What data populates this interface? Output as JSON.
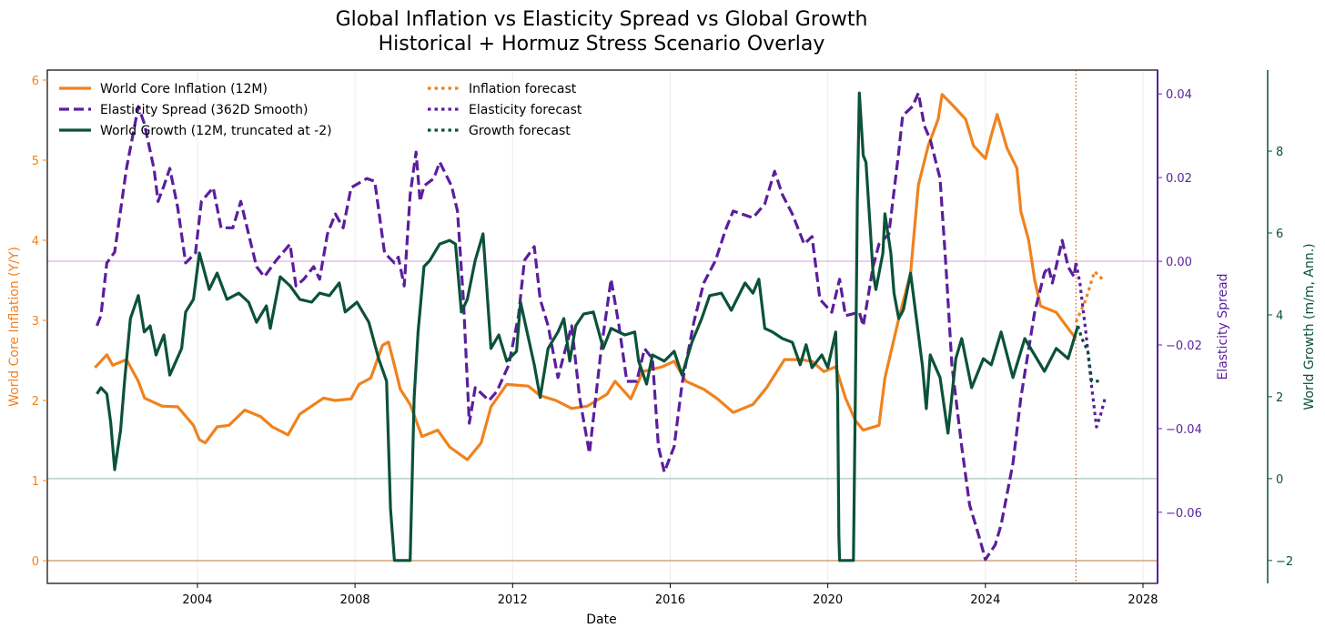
{
  "chart_data": {
    "type": "line",
    "title": [
      "Global Inflation vs Elasticity Spread vs Global Growth",
      "Historical + Hormuz Stress Scenario Overlay"
    ],
    "xlabel": "Date",
    "xlim": [
      2000.19,
      2028.37
    ],
    "x_ticks": [
      2004,
      2008,
      2012,
      2016,
      2020,
      2024,
      2028
    ],
    "x_tick_labels": [
      "2004",
      "2008",
      "2012",
      "2016",
      "2020",
      "2024",
      "2028"
    ],
    "x_grid": true,
    "forecast_start_marker": 2026.3,
    "legend_position": "top-left",
    "axes": {
      "inflation": {
        "label": "World Core Inflation (Y/Y)",
        "ylim": [
          -0.284,
          6.125
        ],
        "ticks": [
          0,
          1,
          2,
          3,
          4,
          5,
          6
        ],
        "tick_labels": [
          "0",
          "1",
          "2",
          "3",
          "4",
          "5",
          "6"
        ],
        "color": "#f0821e",
        "reference_line": 0,
        "reference_color": "#c4955e"
      },
      "elasticity": {
        "label": "Elasticity Spread",
        "ylim": [
          -0.077,
          0.0457
        ],
        "ticks": [
          -0.06,
          -0.04,
          -0.02,
          0,
          0.02,
          0.04
        ],
        "tick_labels": [
          "−0.06",
          "−0.04",
          "−0.02",
          "0.00",
          "0.02",
          "0.04"
        ],
        "color": "#5a1f9c",
        "reference_line": 0,
        "reference_color": "#e0a6ea"
      },
      "growth": {
        "label": "World Growth (m/m, Ann.)",
        "ylim": [
          -2.56,
          9.98
        ],
        "ticks": [
          -2,
          0,
          2,
          4,
          6,
          8
        ],
        "tick_labels": [
          "−2",
          "0",
          "2",
          "4",
          "6",
          "8"
        ],
        "color": "#0b5239",
        "reference_line": 0,
        "reference_color": "#a9c6c3"
      }
    },
    "series": [
      {
        "name": "World Core Inflation (12M)",
        "axis": "inflation",
        "style": "solid",
        "color": "#f0821e",
        "x": [
          2001.4,
          2001.7,
          2001.85,
          2002.2,
          2002.5,
          2002.66,
          2003.1,
          2003.5,
          2003.9,
          2004.05,
          2004.2,
          2004.5,
          2004.8,
          2005.2,
          2005.6,
          2005.9,
          2006.3,
          2006.6,
          2006.9,
          2007.2,
          2007.5,
          2007.9,
          2008.1,
          2008.4,
          2008.7,
          2008.85,
          2009.0,
          2009.15,
          2009.4,
          2009.7,
          2010.1,
          2010.4,
          2010.85,
          2011.2,
          2011.45,
          2011.85,
          2012.4,
          2012.7,
          2013.1,
          2013.5,
          2013.9,
          2014.4,
          2014.6,
          2015.0,
          2015.3,
          2015.8,
          2016.1,
          2016.4,
          2016.85,
          2017.2,
          2017.6,
          2018.1,
          2018.45,
          2018.9,
          2019.3,
          2019.6,
          2019.9,
          2020.2,
          2020.45,
          2020.7,
          2020.9,
          2021.3,
          2021.45,
          2021.8,
          2022.1,
          2022.3,
          2022.55,
          2022.8,
          2022.9,
          2023.2,
          2023.5,
          2023.7,
          2024.0,
          2024.15,
          2024.3,
          2024.55,
          2024.8,
          2024.9,
          2025.1,
          2025.25,
          2025.4,
          2025.8,
          2026.1,
          2026.3
        ],
        "y": [
          2.41,
          2.57,
          2.44,
          2.51,
          2.24,
          2.03,
          1.93,
          1.92,
          1.69,
          1.51,
          1.47,
          1.67,
          1.69,
          1.88,
          1.8,
          1.67,
          1.57,
          1.83,
          1.93,
          2.03,
          2.0,
          2.02,
          2.2,
          2.28,
          2.69,
          2.73,
          2.44,
          2.14,
          1.95,
          1.55,
          1.63,
          1.42,
          1.26,
          1.47,
          1.92,
          2.2,
          2.18,
          2.06,
          2.0,
          1.9,
          1.93,
          2.08,
          2.24,
          2.02,
          2.36,
          2.42,
          2.49,
          2.24,
          2.14,
          2.02,
          1.85,
          1.95,
          2.16,
          2.51,
          2.51,
          2.49,
          2.36,
          2.42,
          2.03,
          1.75,
          1.63,
          1.69,
          2.28,
          3.02,
          3.59,
          4.69,
          5.18,
          5.51,
          5.82,
          5.67,
          5.51,
          5.18,
          5.02,
          5.31,
          5.57,
          5.15,
          4.9,
          4.36,
          4.0,
          3.51,
          3.18,
          3.1,
          2.9,
          2.77
        ]
      },
      {
        "name": "Elasticity Spread (362D Smooth)",
        "axis": "elasticity",
        "style": "dashed",
        "color": "#5a1f9c",
        "x": [
          2001.45,
          2001.55,
          2001.7,
          2001.9,
          2002.2,
          2002.5,
          2002.65,
          2002.9,
          2003.0,
          2003.15,
          2003.3,
          2003.5,
          2003.7,
          2003.95,
          2004.1,
          2004.4,
          2004.6,
          2004.9,
          2005.1,
          2005.3,
          2005.5,
          2005.7,
          2006.0,
          2006.35,
          2006.5,
          2006.7,
          2006.95,
          2007.1,
          2007.3,
          2007.5,
          2007.7,
          2007.9,
          2008.3,
          2008.5,
          2008.75,
          2009.0,
          2009.1,
          2009.25,
          2009.4,
          2009.55,
          2009.65,
          2009.75,
          2010.0,
          2010.15,
          2010.45,
          2010.6,
          2010.75,
          2010.9,
          2011.05,
          2011.4,
          2011.6,
          2011.9,
          2012.15,
          2012.3,
          2012.55,
          2012.7,
          2012.9,
          2013.15,
          2013.5,
          2013.7,
          2013.95,
          2014.25,
          2014.5,
          2014.7,
          2014.9,
          2015.15,
          2015.35,
          2015.55,
          2015.7,
          2015.85,
          2016.1,
          2016.3,
          2016.6,
          2016.85,
          2017.15,
          2017.4,
          2017.6,
          2018.1,
          2018.4,
          2018.65,
          2018.85,
          2019.1,
          2019.4,
          2019.6,
          2019.8,
          2020.1,
          2020.3,
          2020.45,
          2020.8,
          2020.9,
          2021.15,
          2021.3,
          2021.55,
          2021.8,
          2021.9,
          2022.15,
          2022.3,
          2022.45,
          2022.6,
          2022.85,
          2023.0,
          2023.15,
          2023.4,
          2023.6,
          2023.85,
          2024.0,
          2024.25,
          2024.4,
          2024.7,
          2024.9,
          2025.25,
          2025.5,
          2025.6,
          2025.7,
          2025.95,
          2026.1,
          2026.25,
          2026.3
        ],
        "y": [
          -0.0154,
          -0.013,
          -0.0004,
          0.0022,
          0.0222,
          0.037,
          0.033,
          0.022,
          0.0143,
          0.018,
          0.0222,
          0.0128,
          -0.0004,
          0.002,
          0.0143,
          0.0176,
          0.008,
          0.008,
          0.0143,
          0.0065,
          -0.0013,
          -0.0037,
          0.0002,
          0.0041,
          -0.0059,
          -0.0043,
          -0.0013,
          -0.0043,
          0.0065,
          0.0113,
          0.008,
          0.0176,
          0.0198,
          0.0191,
          0.002,
          -0.0004,
          0.001,
          -0.0059,
          0.0159,
          0.0261,
          0.0143,
          0.018,
          0.0198,
          0.0237,
          0.018,
          0.012,
          -0.0091,
          -0.0387,
          -0.0302,
          -0.0333,
          -0.0311,
          -0.0248,
          -0.013,
          0.0002,
          0.0035,
          -0.0091,
          -0.0154,
          -0.0278,
          -0.0154,
          -0.0326,
          -0.0459,
          -0.0209,
          -0.0043,
          -0.0154,
          -0.0287,
          -0.0287,
          -0.0209,
          -0.0233,
          -0.0443,
          -0.0504,
          -0.0443,
          -0.0293,
          -0.0146,
          -0.0052,
          0.0002,
          0.0074,
          0.012,
          0.0104,
          0.0137,
          0.0215,
          0.0159,
          0.0113,
          0.0041,
          0.0059,
          -0.0091,
          -0.0122,
          -0.0043,
          -0.013,
          -0.0122,
          -0.0154,
          -0.0013,
          0.0041,
          0.0065,
          0.0261,
          0.0348,
          0.037,
          0.0402,
          0.0324,
          0.0291,
          0.0198,
          -0.0013,
          -0.0248,
          -0.0443,
          -0.0583,
          -0.0661,
          -0.0713,
          -0.0678,
          -0.063,
          -0.0483,
          -0.0326,
          -0.0122,
          -0.0028,
          -0.0013,
          -0.0052,
          0.005,
          -0.0013,
          -0.0037,
          -0.0004
        ]
      },
      {
        "name": "World Growth (12M, truncated at -2)",
        "axis": "growth",
        "style": "solid",
        "color": "#0b5239",
        "x": [
          2001.45,
          2001.55,
          2001.7,
          2001.8,
          2001.9,
          2002.05,
          2002.15,
          2002.3,
          2002.5,
          2002.65,
          2002.8,
          2002.95,
          2003.15,
          2003.3,
          2003.6,
          2003.7,
          2003.9,
          2004.05,
          2004.3,
          2004.5,
          2004.75,
          2005.05,
          2005.3,
          2005.5,
          2005.75,
          2005.85,
          2006.1,
          2006.35,
          2006.6,
          2006.9,
          2007.1,
          2007.35,
          2007.6,
          2007.75,
          2008.05,
          2008.35,
          2008.6,
          2008.8,
          2008.9,
          2009.0,
          2009.4,
          2009.5,
          2009.6,
          2009.75,
          2009.9,
          2010.15,
          2010.4,
          2010.55,
          2010.7,
          2010.85,
          2011.05,
          2011.25,
          2011.45,
          2011.65,
          2011.85,
          2012.1,
          2012.2,
          2012.55,
          2012.7,
          2012.9,
          2013.15,
          2013.3,
          2013.45,
          2013.6,
          2013.8,
          2014.05,
          2014.3,
          2014.5,
          2014.85,
          2015.1,
          2015.2,
          2015.4,
          2015.55,
          2015.85,
          2016.1,
          2016.3,
          2016.55,
          2016.8,
          2017.0,
          2017.3,
          2017.55,
          2017.9,
          2018.1,
          2018.25,
          2018.4,
          2018.6,
          2018.85,
          2019.1,
          2019.3,
          2019.45,
          2019.6,
          2019.85,
          2020.0,
          2020.2,
          2020.25,
          2020.28,
          2020.3,
          2020.65,
          2020.7,
          2020.75,
          2020.8,
          2020.9,
          2020.97,
          2021.15,
          2021.22,
          2021.4,
          2021.45,
          2021.6,
          2021.68,
          2021.8,
          2021.92,
          2022.1,
          2022.25,
          2022.4,
          2022.5,
          2022.6,
          2022.85,
          2023.05,
          2023.25,
          2023.4,
          2023.65,
          2023.95,
          2024.15,
          2024.4,
          2024.7,
          2025.0,
          2025.25,
          2025.5,
          2025.8,
          2026.1,
          2026.35
        ],
        "y": [
          2.07,
          2.22,
          2.07,
          1.36,
          0.22,
          1.18,
          2.38,
          3.91,
          4.47,
          3.58,
          3.73,
          3.02,
          3.51,
          2.53,
          3.18,
          4.07,
          4.38,
          5.51,
          4.62,
          5.02,
          4.38,
          4.53,
          4.31,
          3.82,
          4.22,
          3.67,
          4.93,
          4.71,
          4.38,
          4.31,
          4.53,
          4.47,
          4.78,
          4.07,
          4.31,
          3.82,
          2.93,
          2.38,
          -0.73,
          -2.0,
          -2.0,
          1.98,
          3.58,
          5.18,
          5.33,
          5.73,
          5.82,
          5.73,
          4.07,
          4.38,
          5.33,
          5.98,
          3.18,
          3.51,
          2.87,
          3.11,
          4.31,
          2.78,
          1.98,
          3.18,
          3.58,
          3.91,
          2.87,
          3.73,
          4.02,
          4.07,
          3.18,
          3.67,
          3.51,
          3.58,
          2.87,
          2.31,
          3.02,
          2.87,
          3.11,
          2.53,
          3.33,
          3.91,
          4.47,
          4.53,
          4.11,
          4.78,
          4.53,
          4.87,
          3.67,
          3.58,
          3.42,
          3.33,
          2.78,
          3.27,
          2.71,
          3.02,
          2.71,
          3.58,
          1.98,
          -1.38,
          -2.0,
          -2.0,
          1.98,
          6.78,
          9.42,
          7.89,
          7.73,
          5.02,
          4.62,
          5.51,
          6.47,
          5.51,
          4.53,
          3.91,
          4.13,
          5.02,
          3.91,
          2.78,
          1.71,
          3.02,
          2.47,
          1.11,
          2.93,
          3.42,
          2.22,
          2.93,
          2.78,
          3.58,
          2.47,
          3.42,
          3.02,
          2.62,
          3.18,
          2.93,
          3.73
        ]
      },
      {
        "name": "Inflation forecast",
        "axis": "inflation",
        "style": "dotted",
        "color": "#f0821e",
        "x": [
          2026.3,
          2026.55,
          2026.77,
          2026.98
        ],
        "y": [
          2.98,
          3.26,
          3.61,
          3.51
        ]
      },
      {
        "name": "Elasticity forecast",
        "axis": "elasticity",
        "style": "dotted",
        "color": "#5a1f9c",
        "x": [
          2026.3,
          2026.4,
          2026.55,
          2026.7,
          2026.82,
          2026.93,
          2027.05
        ],
        "y": [
          -0.0004,
          -0.0052,
          -0.017,
          -0.0302,
          -0.0396,
          -0.0365,
          -0.0322
        ]
      },
      {
        "name": "Growth forecast",
        "axis": "growth",
        "style": "dotted",
        "color": "#0b5239",
        "x": [
          2026.35,
          2026.45,
          2026.6,
          2026.7,
          2026.9
        ],
        "y": [
          3.73,
          3.42,
          3.11,
          2.38,
          2.38
        ]
      }
    ]
  }
}
